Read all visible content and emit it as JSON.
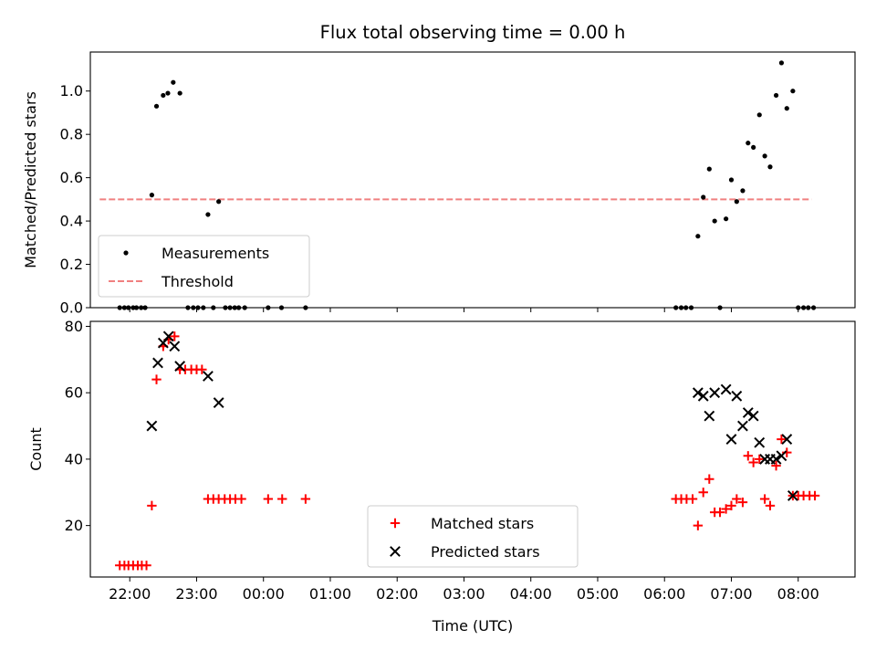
{
  "chart_data": {
    "type": "scatter",
    "title": "Flux total observing time = 0.00 h",
    "xlabel": "Time (UTC)",
    "x_ticks": [
      "22:00",
      "23:00",
      "00:00",
      "01:00",
      "02:00",
      "03:00",
      "04:00",
      "05:00",
      "06:00",
      "07:00",
      "08:00"
    ],
    "x_tick_hours": [
      22,
      23,
      24,
      25,
      26,
      27,
      28,
      29,
      30,
      31,
      32
    ],
    "xlim": [
      21.41,
      32.85
    ],
    "panels": [
      {
        "ylabel": "Matched/Predicted stars",
        "ylim": [
          0,
          1.18
        ],
        "y_ticks": [
          0.0,
          0.2,
          0.4,
          0.6,
          0.8,
          1.0
        ],
        "legend": {
          "position": "lower-left",
          "entries": [
            "Measurements",
            "Threshold"
          ]
        },
        "threshold": {
          "name": "Threshold",
          "value": 0.5,
          "x_range": [
            21.55,
            32.2
          ],
          "color": "#f08080"
        },
        "series": [
          {
            "name": "Measurements",
            "marker": "dot",
            "color": "#000000",
            "points": [
              [
                21.85,
                0.0
              ],
              [
                21.92,
                0.0
              ],
              [
                21.98,
                0.0
              ],
              [
                22.05,
                0.0
              ],
              [
                22.1,
                0.0
              ],
              [
                22.17,
                0.0
              ],
              [
                22.23,
                0.0
              ],
              [
                22.33,
                0.52
              ],
              [
                22.4,
                0.93
              ],
              [
                22.5,
                0.98
              ],
              [
                22.57,
                0.99
              ],
              [
                22.65,
                1.04
              ],
              [
                22.75,
                0.99
              ],
              [
                22.87,
                0.0
              ],
              [
                22.95,
                0.0
              ],
              [
                23.02,
                0.0
              ],
              [
                23.1,
                0.0
              ],
              [
                23.17,
                0.43
              ],
              [
                23.25,
                0.0
              ],
              [
                23.33,
                0.49
              ],
              [
                23.43,
                0.0
              ],
              [
                23.5,
                0.0
              ],
              [
                23.57,
                0.0
              ],
              [
                23.63,
                0.0
              ],
              [
                23.72,
                0.0
              ],
              [
                24.07,
                0.0
              ],
              [
                24.27,
                0.0
              ],
              [
                24.63,
                0.0
              ],
              [
                30.17,
                0.0
              ],
              [
                30.25,
                0.0
              ],
              [
                30.32,
                0.0
              ],
              [
                30.4,
                0.0
              ],
              [
                30.5,
                0.33
              ],
              [
                30.58,
                0.51
              ],
              [
                30.67,
                0.64
              ],
              [
                30.75,
                0.4
              ],
              [
                30.83,
                0.0
              ],
              [
                30.92,
                0.41
              ],
              [
                31.0,
                0.59
              ],
              [
                31.08,
                0.49
              ],
              [
                31.17,
                0.54
              ],
              [
                31.25,
                0.76
              ],
              [
                31.33,
                0.74
              ],
              [
                31.42,
                0.89
              ],
              [
                31.5,
                0.7
              ],
              [
                31.58,
                0.65
              ],
              [
                31.67,
                0.98
              ],
              [
                31.75,
                1.13
              ],
              [
                31.83,
                0.92
              ],
              [
                31.92,
                1.0
              ],
              [
                32.0,
                0.0
              ],
              [
                32.08,
                0.0
              ],
              [
                32.15,
                0.0
              ],
              [
                32.23,
                0.0
              ]
            ]
          }
        ]
      },
      {
        "ylabel": "Count",
        "ylim": [
          4.5,
          81.5
        ],
        "y_ticks": [
          20,
          40,
          60,
          80
        ],
        "legend": {
          "position": "lower-center",
          "entries": [
            "Matched stars",
            "Predicted stars"
          ]
        },
        "series": [
          {
            "name": "Matched stars",
            "marker": "plus",
            "color": "#ff0000",
            "points": [
              [
                21.85,
                8
              ],
              [
                21.92,
                8
              ],
              [
                21.98,
                8
              ],
              [
                22.05,
                8
              ],
              [
                22.12,
                8
              ],
              [
                22.18,
                8
              ],
              [
                22.25,
                8
              ],
              [
                22.33,
                26
              ],
              [
                22.4,
                64
              ],
              [
                22.5,
                74
              ],
              [
                22.58,
                76
              ],
              [
                22.67,
                77
              ],
              [
                22.75,
                67
              ],
              [
                22.83,
                67
              ],
              [
                22.92,
                67
              ],
              [
                23.0,
                67
              ],
              [
                23.08,
                67
              ],
              [
                23.17,
                28
              ],
              [
                23.25,
                28
              ],
              [
                23.33,
                28
              ],
              [
                23.42,
                28
              ],
              [
                23.5,
                28
              ],
              [
                23.58,
                28
              ],
              [
                23.67,
                28
              ],
              [
                24.07,
                28
              ],
              [
                24.28,
                28
              ],
              [
                24.63,
                28
              ],
              [
                30.17,
                28
              ],
              [
                30.25,
                28
              ],
              [
                30.33,
                28
              ],
              [
                30.42,
                28
              ],
              [
                30.5,
                20
              ],
              [
                30.58,
                30
              ],
              [
                30.67,
                34
              ],
              [
                30.75,
                24
              ],
              [
                30.83,
                24
              ],
              [
                30.92,
                25
              ],
              [
                31.0,
                26
              ],
              [
                31.08,
                28
              ],
              [
                31.17,
                27
              ],
              [
                31.25,
                41
              ],
              [
                31.33,
                39
              ],
              [
                31.42,
                40
              ],
              [
                31.5,
                28
              ],
              [
                31.58,
                26
              ],
              [
                31.67,
                38
              ],
              [
                31.75,
                46
              ],
              [
                31.83,
                42
              ],
              [
                31.92,
                29
              ],
              [
                32.0,
                29
              ],
              [
                32.08,
                29
              ],
              [
                32.17,
                29
              ],
              [
                32.25,
                29
              ]
            ]
          },
          {
            "name": "Predicted stars",
            "marker": "x",
            "color": "#000000",
            "points": [
              [
                22.33,
                50
              ],
              [
                22.42,
                69
              ],
              [
                22.5,
                75
              ],
              [
                22.58,
                77
              ],
              [
                22.67,
                74
              ],
              [
                22.75,
                68
              ],
              [
                23.17,
                65
              ],
              [
                23.33,
                57
              ],
              [
                30.5,
                60
              ],
              [
                30.58,
                59
              ],
              [
                30.67,
                53
              ],
              [
                30.75,
                60
              ],
              [
                30.92,
                61
              ],
              [
                31.0,
                46
              ],
              [
                31.08,
                59
              ],
              [
                31.17,
                50
              ],
              [
                31.25,
                54
              ],
              [
                31.33,
                53
              ],
              [
                31.42,
                45
              ],
              [
                31.5,
                40
              ],
              [
                31.58,
                40
              ],
              [
                31.67,
                40
              ],
              [
                31.75,
                41
              ],
              [
                31.83,
                46
              ],
              [
                31.92,
                29
              ]
            ]
          }
        ]
      }
    ]
  }
}
